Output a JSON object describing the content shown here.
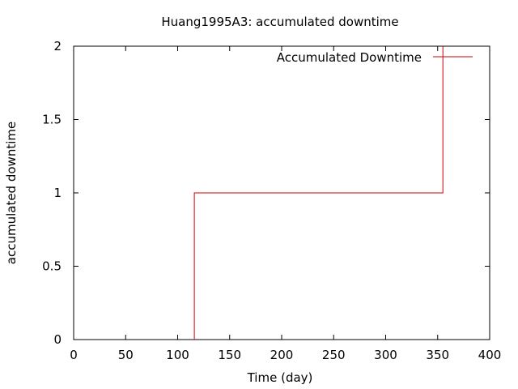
{
  "chart_data": {
    "type": "line",
    "title": "Huang1995A3: accumulated downtime",
    "xlabel": "Time (day)",
    "ylabel": "accumulated downtime",
    "xlim": [
      0,
      400
    ],
    "ylim": [
      0,
      2
    ],
    "xticks": [
      0,
      50,
      100,
      150,
      200,
      250,
      300,
      350,
      400
    ],
    "yticks": [
      0,
      0.5,
      1,
      1.5,
      2
    ],
    "xtick_labels": [
      "0",
      "50",
      "100",
      "150",
      "200",
      "250",
      "300",
      "350",
      "400"
    ],
    "ytick_labels": [
      "0",
      "0.5",
      "1",
      "1.5",
      "2"
    ],
    "grid": false,
    "legend_position": "top-right",
    "series": [
      {
        "name": "Accumulated Downtime",
        "color": "#cc0000",
        "step": true,
        "x": [
          116,
          116,
          355,
          355
        ],
        "y": [
          0,
          1,
          1,
          2
        ]
      }
    ]
  }
}
